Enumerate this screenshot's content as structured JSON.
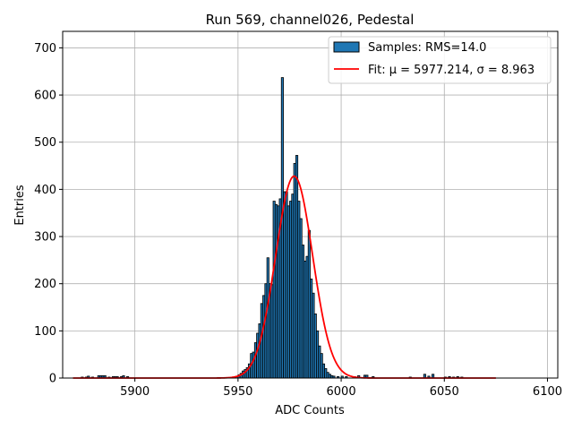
{
  "chart_data": {
    "type": "bar",
    "title": "Run 569, channel026, Pedestal",
    "xlabel": "ADC Counts",
    "ylabel": "Entries",
    "xlim": [
      5865,
      6105
    ],
    "ylim": [
      0,
      735
    ],
    "xticks": [
      5900,
      5950,
      6000,
      6050,
      6100
    ],
    "yticks": [
      0,
      100,
      200,
      300,
      400,
      500,
      600,
      700
    ],
    "grid": true,
    "legend_position": "top-right",
    "histogram": {
      "name": "Samples: RMS=14.0",
      "color": "#1f77b4",
      "edgecolor": "#000000",
      "bin_width": 1,
      "bins": [
        [
          5874,
          2
        ],
        [
          5876,
          2
        ],
        [
          5877,
          4
        ],
        [
          5879,
          2
        ],
        [
          5882,
          5
        ],
        [
          5883,
          5
        ],
        [
          5884,
          5
        ],
        [
          5885,
          5
        ],
        [
          5887,
          2
        ],
        [
          5889,
          3
        ],
        [
          5890,
          3
        ],
        [
          5891,
          3
        ],
        [
          5893,
          3
        ],
        [
          5894,
          5
        ],
        [
          5896,
          3
        ],
        [
          5945,
          1
        ],
        [
          5948,
          3
        ],
        [
          5949,
          4
        ],
        [
          5950,
          7
        ],
        [
          5951,
          10
        ],
        [
          5952,
          15
        ],
        [
          5953,
          18
        ],
        [
          5954,
          22
        ],
        [
          5955,
          30
        ],
        [
          5956,
          52
        ],
        [
          5957,
          55
        ],
        [
          5958,
          75
        ],
        [
          5959,
          95
        ],
        [
          5960,
          115
        ],
        [
          5961,
          158
        ],
        [
          5962,
          175
        ],
        [
          5963,
          200
        ],
        [
          5964,
          255
        ],
        [
          5965,
          200
        ],
        [
          5966,
          198
        ],
        [
          5967,
          375
        ],
        [
          5968,
          368
        ],
        [
          5969,
          365
        ],
        [
          5970,
          380
        ],
        [
          5971,
          637
        ],
        [
          5972,
          395
        ],
        [
          5973,
          395
        ],
        [
          5974,
          365
        ],
        [
          5975,
          375
        ],
        [
          5976,
          390
        ],
        [
          5977,
          455
        ],
        [
          5978,
          472
        ],
        [
          5979,
          375
        ],
        [
          5980,
          338
        ],
        [
          5981,
          282
        ],
        [
          5982,
          248
        ],
        [
          5983,
          258
        ],
        [
          5984,
          313
        ],
        [
          5985,
          210
        ],
        [
          5986,
          180
        ],
        [
          5987,
          136
        ],
        [
          5988,
          100
        ],
        [
          5989,
          68
        ],
        [
          5990,
          52
        ],
        [
          5991,
          30
        ],
        [
          5992,
          20
        ],
        [
          5993,
          12
        ],
        [
          5994,
          8
        ],
        [
          5995,
          5
        ],
        [
          5996,
          4
        ],
        [
          5998,
          3
        ],
        [
          6000,
          4
        ],
        [
          6002,
          3
        ],
        [
          6006,
          3
        ],
        [
          6008,
          5
        ],
        [
          6011,
          6
        ],
        [
          6012,
          6
        ],
        [
          6015,
          3
        ],
        [
          6033,
          2
        ],
        [
          6040,
          8
        ],
        [
          6042,
          4
        ],
        [
          6044,
          8
        ],
        [
          6050,
          2
        ],
        [
          6052,
          3
        ],
        [
          6054,
          2
        ],
        [
          6056,
          3
        ],
        [
          6058,
          2
        ]
      ]
    },
    "fit": {
      "name": "Fit: μ = 5977.214, σ = 8.963",
      "color": "#ff0000",
      "mu": 5977.214,
      "sigma": 8.963,
      "amplitude": 428,
      "x_range": [
        5870,
        6075
      ]
    }
  }
}
